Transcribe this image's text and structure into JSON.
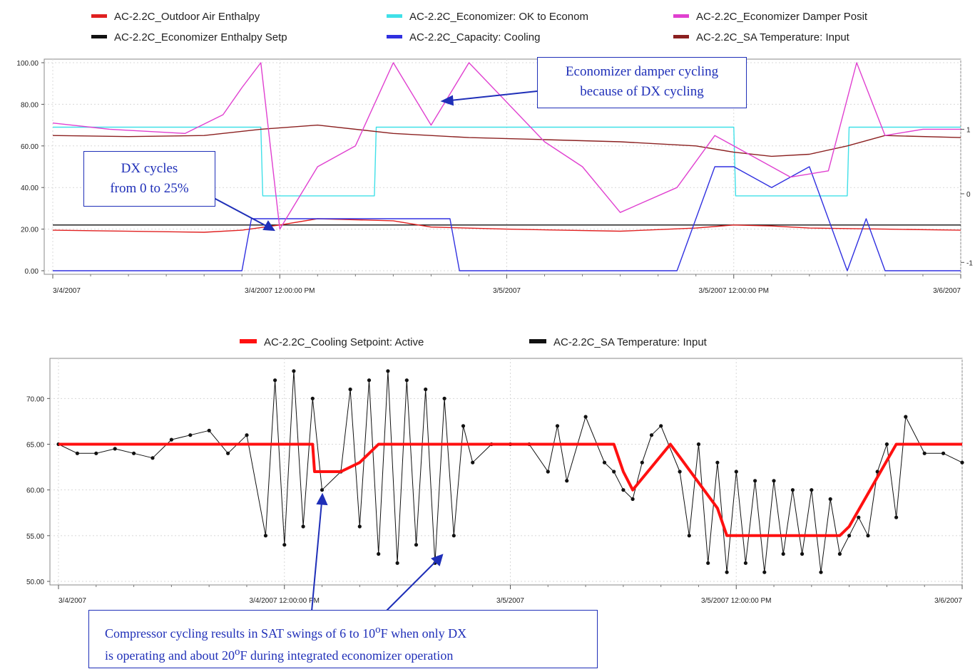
{
  "callouts": {
    "damper_line1": "Economizer damper cycling",
    "damper_line2": "because of DX cycling",
    "dx_line1": "DX cycles",
    "dx_line2": "from 0 to 25%",
    "comp_line1_pre": "Compressor cycling results in SAT swings of 6 to 10",
    "comp_line1_sup": "o",
    "comp_line1_post": "F when only DX",
    "comp_line2_pre": "is operating and about 20",
    "comp_line2_sup": "o",
    "comp_line2_post": "F during integrated economizer operation"
  },
  "chart_data": [
    {
      "type": "line",
      "title": "",
      "xlabel": "",
      "ylabel": "",
      "x_ticks": [
        "3/4/2007",
        "3/4/2007 12:00:00 PM",
        "3/5/2007",
        "3/5/2007 12:00:00 PM",
        "3/6/2007"
      ],
      "x_range": [
        "3/4/2007",
        "3/6/2007"
      ],
      "y_ticks": [
        "0.00",
        "20.00",
        "40.00",
        "60.00",
        "80.00",
        "100.00"
      ],
      "y_range": [
        0,
        100
      ],
      "y2_ticks": [
        "-1",
        "0",
        "1"
      ],
      "grid": true,
      "legend_position": "top",
      "series": [
        {
          "name": "AC-2.2C_Outdoor Air Enthalpy",
          "color": "#e02020",
          "x_hours": [
            0,
            8,
            10,
            12,
            14,
            18,
            20,
            24,
            30,
            34,
            36,
            38,
            40,
            44,
            48
          ],
          "values": [
            19.5,
            18.5,
            19.5,
            22,
            25,
            24,
            21,
            20,
            19,
            20.5,
            22,
            21.5,
            20.5,
            20,
            19.5
          ]
        },
        {
          "name": "AC-2.2C_Economizer: OK to Econom",
          "color": "#40e0e8",
          "x_hours": [
            0,
            11,
            11.1,
            17,
            17.1,
            36,
            36.1,
            42,
            42.1,
            48
          ],
          "values": [
            69,
            69,
            36,
            36,
            69,
            69,
            36,
            36,
            69,
            69
          ]
        },
        {
          "name": "AC-2.2C_Economizer Damper Posit",
          "color": "#e040d0",
          "x_hours": [
            0,
            3,
            7,
            9,
            10,
            11,
            12,
            14,
            16,
            18,
            20,
            22,
            26,
            28,
            30,
            33,
            35,
            37,
            39,
            41,
            42.5,
            44,
            46,
            48
          ],
          "values": [
            71,
            68,
            66,
            75,
            88,
            100,
            20,
            50,
            60,
            100,
            70,
            100,
            62,
            50,
            28,
            40,
            65,
            55,
            45,
            48,
            100,
            65,
            68,
            68
          ]
        },
        {
          "name": "AC-2.2C_Economizer Enthalpy Setp",
          "color": "#111111",
          "x_hours": [
            0,
            48
          ],
          "values": [
            22,
            22
          ]
        },
        {
          "name": "AC-2.2C_Capacity: Cooling",
          "color": "#3030e0",
          "x_hours": [
            0,
            10,
            10.5,
            21,
            21.5,
            33,
            34,
            35,
            36,
            38,
            40,
            42,
            43,
            44,
            48
          ],
          "values": [
            0,
            0,
            25,
            25,
            0,
            0,
            25,
            50,
            50,
            40,
            50,
            0,
            25,
            0,
            0
          ]
        },
        {
          "name": "AC-2.2C_SA Temperature: Input",
          "color": "#8b2020",
          "x_hours": [
            0,
            4,
            8,
            11,
            14,
            18,
            22,
            26,
            30,
            34,
            36,
            38,
            40,
            42,
            44,
            48
          ],
          "values": [
            65,
            64.5,
            65,
            68,
            70,
            66,
            64,
            63,
            62,
            60,
            57,
            55,
            56,
            60,
            65,
            64
          ]
        }
      ]
    },
    {
      "type": "line",
      "title": "",
      "xlabel": "",
      "ylabel": "",
      "x_ticks": [
        "3/4/2007",
        "3/4/2007 12:00:00 PM",
        "3/5/2007",
        "3/5/2007 12:00:00 PM",
        "3/6/2007"
      ],
      "x_range": [
        "3/4/2007",
        "3/6/2007"
      ],
      "y_ticks": [
        "50.00",
        "55.00",
        "60.00",
        "65.00",
        "70.00"
      ],
      "y_range": [
        50,
        74
      ],
      "grid": true,
      "legend_position": "top",
      "series": [
        {
          "name": "AC-2.2C_Cooling Setpoint: Active",
          "color": "#ff1010",
          "x_hours": [
            0,
            13.5,
            13.6,
            15,
            16,
            17,
            29.5,
            30,
            30.5,
            32.5,
            35,
            35.5,
            38,
            41.5,
            42,
            44.5,
            48
          ],
          "values": [
            65,
            65,
            62,
            62,
            63,
            65,
            65,
            62,
            60,
            65,
            58,
            55,
            55,
            55,
            56,
            65,
            65
          ]
        },
        {
          "name": "AC-2.2C_SA Temperature: Input",
          "color": "#111111",
          "x_hours": [
            0,
            1,
            2,
            3,
            4,
            5,
            6,
            7,
            8,
            9,
            10,
            11,
            11.5,
            12,
            12.5,
            13,
            13.5,
            14,
            15,
            15.5,
            16,
            16.5,
            17,
            17.5,
            18,
            18.5,
            19,
            19.5,
            20,
            20.5,
            21,
            21.5,
            22,
            23,
            24,
            25,
            26,
            26.5,
            27,
            28,
            29,
            29.5,
            30,
            30.5,
            31,
            31.5,
            32,
            33,
            33.5,
            34,
            34.5,
            35,
            35.5,
            36,
            36.5,
            37,
            37.5,
            38,
            38.5,
            39,
            39.5,
            40,
            40.5,
            41,
            41.5,
            42,
            42.5,
            43,
            43.5,
            44,
            44.5,
            45,
            46,
            47,
            48
          ],
          "values": [
            65,
            64,
            64,
            64.5,
            64,
            63.5,
            65.5,
            66,
            66.5,
            64,
            66,
            55,
            72,
            54,
            73,
            56,
            70,
            60,
            62,
            71,
            56,
            72,
            53,
            73,
            52,
            72,
            54,
            71,
            52,
            70,
            55,
            67,
            63,
            65,
            65,
            65,
            62,
            67,
            61,
            68,
            63,
            62,
            60,
            59,
            63,
            66,
            67,
            62,
            55,
            65,
            52,
            63,
            51,
            62,
            52,
            61,
            51,
            61,
            53,
            60,
            53,
            60,
            51,
            59,
            53,
            55,
            57,
            55,
            62,
            65,
            57,
            68,
            64,
            64,
            63
          ]
        }
      ]
    }
  ]
}
